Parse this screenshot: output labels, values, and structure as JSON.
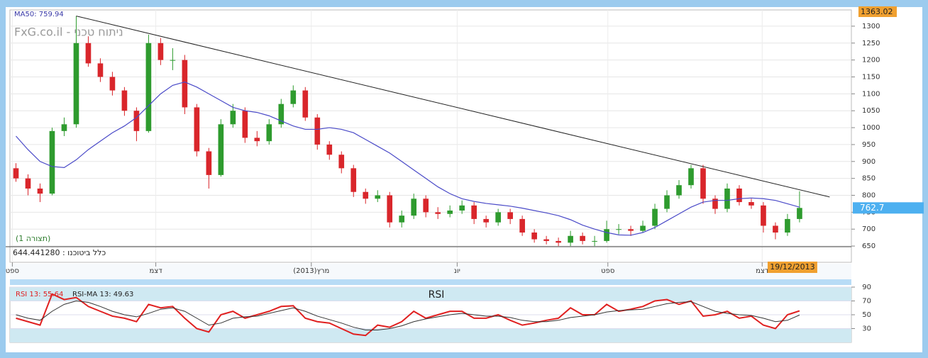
{
  "chart_data": [
    {
      "type": "candlestick",
      "title": "FxG.co.il - ניתוח טכני",
      "subtitle": "(תצורה 1)",
      "note": "כלל ביטוכנו : 644.441280",
      "up_color": "#2e9b2e",
      "down_color": "#d9262b",
      "ohlc": [
        [
          880,
          895,
          840,
          850
        ],
        [
          850,
          862,
          800,
          820
        ],
        [
          820,
          835,
          780,
          805
        ],
        [
          805,
          1000,
          800,
          990
        ],
        [
          990,
          1030,
          975,
          1010
        ],
        [
          1010,
          1330,
          1000,
          1250
        ],
        [
          1250,
          1270,
          1180,
          1190
        ],
        [
          1190,
          1205,
          1135,
          1150
        ],
        [
          1150,
          1165,
          1095,
          1110
        ],
        [
          1110,
          1120,
          1035,
          1050
        ],
        [
          1050,
          1060,
          960,
          990
        ],
        [
          990,
          1275,
          985,
          1250
        ],
        [
          1250,
          1265,
          1185,
          1200
        ],
        [
          1200,
          1235,
          1170,
          1200
        ],
        [
          1200,
          1215,
          1040,
          1060
        ],
        [
          1060,
          1070,
          915,
          930
        ],
        [
          930,
          940,
          820,
          860
        ],
        [
          860,
          1025,
          855,
          1010
        ],
        [
          1010,
          1070,
          1000,
          1050
        ],
        [
          1050,
          1060,
          955,
          970
        ],
        [
          970,
          990,
          945,
          960
        ],
        [
          960,
          1025,
          950,
          1010
        ],
        [
          1010,
          1085,
          1000,
          1070
        ],
        [
          1070,
          1125,
          1060,
          1110
        ],
        [
          1110,
          1120,
          1020,
          1030
        ],
        [
          1030,
          1040,
          935,
          950
        ],
        [
          950,
          960,
          905,
          920
        ],
        [
          920,
          930,
          865,
          880
        ],
        [
          880,
          890,
          795,
          810
        ],
        [
          810,
          820,
          775,
          790
        ],
        [
          790,
          815,
          780,
          800
        ],
        [
          800,
          810,
          705,
          720
        ],
        [
          720,
          755,
          705,
          740
        ],
        [
          740,
          805,
          730,
          790
        ],
        [
          790,
          800,
          735,
          750
        ],
        [
          750,
          765,
          730,
          745
        ],
        [
          745,
          770,
          735,
          755
        ],
        [
          755,
          785,
          745,
          770
        ],
        [
          770,
          780,
          715,
          730
        ],
        [
          730,
          740,
          705,
          720
        ],
        [
          720,
          760,
          710,
          750
        ],
        [
          750,
          760,
          715,
          730
        ],
        [
          730,
          740,
          680,
          690
        ],
        [
          690,
          700,
          660,
          670
        ],
        [
          670,
          680,
          655,
          665
        ],
        [
          665,
          675,
          650,
          660
        ],
        [
          660,
          695,
          650,
          680
        ],
        [
          680,
          690,
          655,
          665
        ],
        [
          665,
          680,
          650,
          665
        ],
        [
          665,
          725,
          660,
          700
        ],
        [
          700,
          715,
          685,
          700
        ],
        [
          700,
          710,
          680,
          695
        ],
        [
          695,
          725,
          690,
          710
        ],
        [
          710,
          775,
          700,
          760
        ],
        [
          760,
          815,
          750,
          800
        ],
        [
          800,
          845,
          790,
          830
        ],
        [
          830,
          890,
          820,
          880
        ],
        [
          880,
          890,
          775,
          790
        ],
        [
          790,
          800,
          745,
          760
        ],
        [
          760,
          835,
          750,
          820
        ],
        [
          820,
          830,
          770,
          780
        ],
        [
          780,
          790,
          760,
          770
        ],
        [
          770,
          780,
          690,
          710
        ],
        [
          710,
          720,
          670,
          690
        ],
        [
          690,
          745,
          680,
          730
        ],
        [
          730,
          812,
          720,
          762.7
        ]
      ],
      "series": [
        {
          "name": "MA50: 759.94",
          "color": "#4a4ac8",
          "values": [
            975,
            935,
            900,
            885,
            882,
            905,
            935,
            960,
            985,
            1005,
            1030,
            1065,
            1100,
            1125,
            1135,
            1120,
            1100,
            1080,
            1060,
            1050,
            1045,
            1035,
            1020,
            1005,
            995,
            995,
            1000,
            995,
            985,
            965,
            945,
            925,
            900,
            875,
            850,
            825,
            805,
            790,
            782,
            776,
            772,
            768,
            762,
            755,
            748,
            740,
            728,
            712,
            700,
            690,
            683,
            682,
            690,
            705,
            725,
            745,
            765,
            780,
            785,
            785,
            790,
            792,
            790,
            785,
            775,
            765
          ]
        }
      ],
      "trendline": [
        [
          5.5,
          1330
        ],
        [
          68,
          795
        ]
      ],
      "high_label": 1363.02,
      "cursor_date": "19/12/2013",
      "xlim": [
        0,
        69.8
      ],
      "xticks": [
        {
          "value": 0.2,
          "label": "ספט"
        },
        {
          "value": 12.1,
          "label": "דצמ"
        },
        {
          "value": 25,
          "label": "מרץ(2013)"
        },
        {
          "value": 37.1,
          "label": "יונ"
        },
        {
          "value": 49.6,
          "label": "ספט"
        },
        {
          "value": 62.4,
          "label": "דצמ"
        }
      ],
      "ylim": [
        602,
        1348
      ],
      "yticks": [
        650,
        700,
        750,
        800,
        850,
        900,
        950,
        1000,
        1050,
        1100,
        1150,
        1200,
        1250,
        1300
      ],
      "grid": true
    },
    {
      "type": "line",
      "title": "RSI",
      "bands": [
        [
          70,
          90
        ],
        [
          10,
          30
        ]
      ],
      "band_color": "#cfe9f2",
      "series": [
        {
          "name": "RSI 13: 55.64",
          "color": "#e02020",
          "values": [
            45,
            40,
            35,
            80,
            72,
            75,
            62,
            55,
            48,
            45,
            40,
            65,
            60,
            62,
            45,
            30,
            25,
            50,
            55,
            45,
            50,
            55,
            62,
            63,
            45,
            40,
            38,
            30,
            22,
            20,
            35,
            32,
            40,
            55,
            45,
            50,
            55,
            55,
            45,
            45,
            50,
            42,
            35,
            38,
            42,
            45,
            60,
            50,
            50,
            65,
            55,
            58,
            62,
            70,
            72,
            65,
            70,
            48,
            50,
            55,
            45,
            48,
            35,
            30,
            50,
            55.64
          ]
        },
        {
          "name": "RSI-MA 13: 49.63",
          "color": "#333333",
          "values": [
            50,
            45,
            42,
            55,
            65,
            70,
            68,
            62,
            55,
            50,
            47,
            52,
            58,
            60,
            55,
            45,
            35,
            38,
            45,
            47,
            48,
            52,
            56,
            60,
            55,
            48,
            43,
            38,
            32,
            28,
            28,
            30,
            34,
            40,
            44,
            47,
            50,
            52,
            50,
            48,
            48,
            46,
            42,
            40,
            40,
            42,
            46,
            48,
            50,
            54,
            56,
            57,
            58,
            62,
            66,
            68,
            69,
            62,
            55,
            52,
            50,
            49,
            45,
            40,
            42,
            49.63
          ]
        }
      ],
      "xlim": [
        0,
        69.8
      ],
      "ylim": [
        10,
        90
      ],
      "yticks": [
        30,
        50,
        70,
        90
      ],
      "grid": true
    }
  ]
}
